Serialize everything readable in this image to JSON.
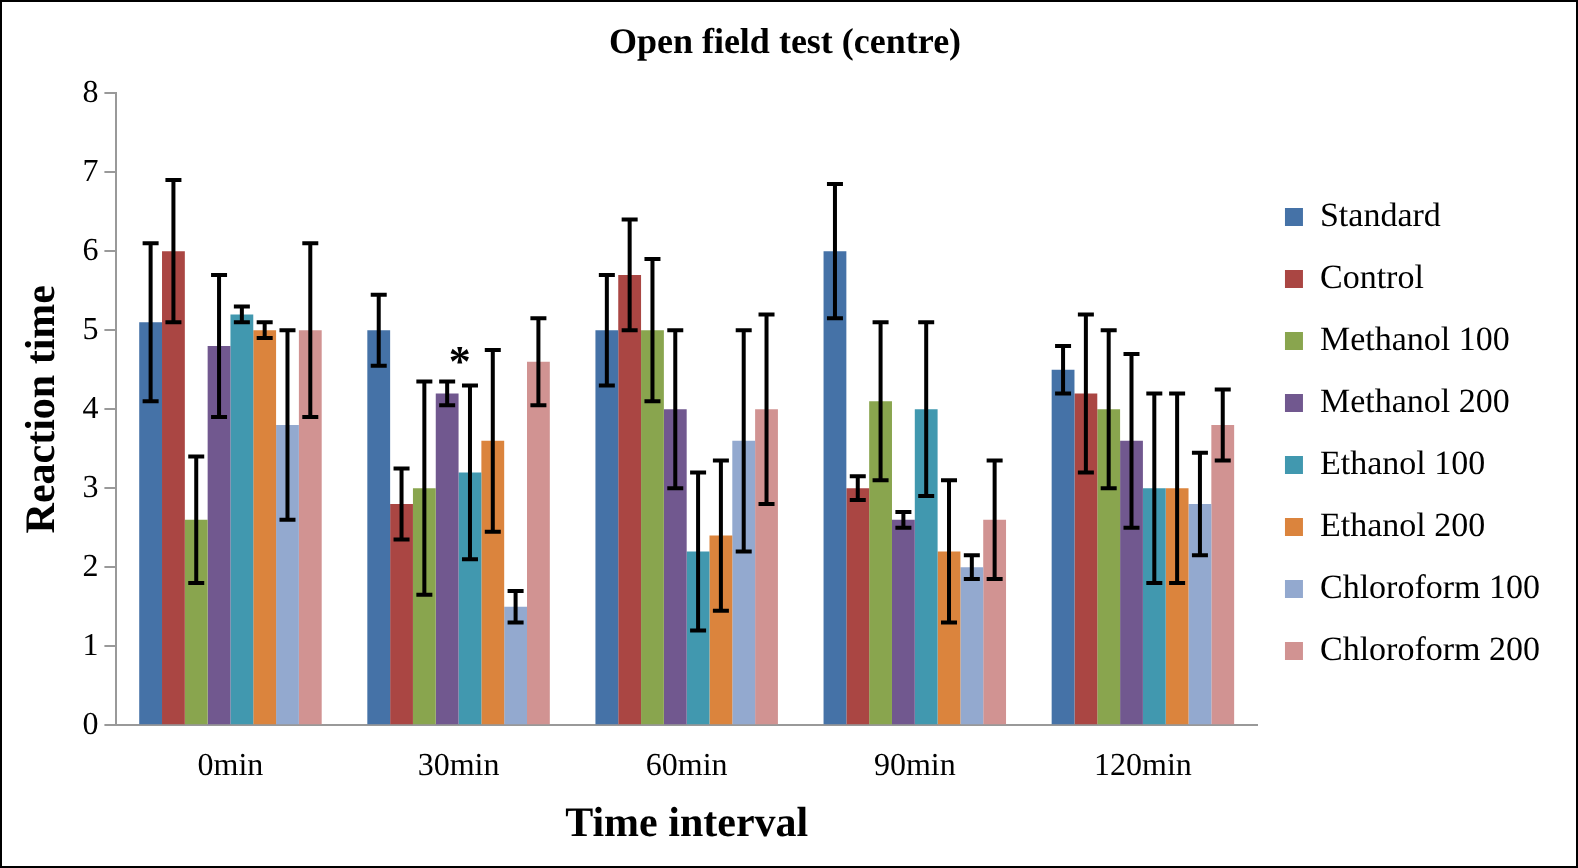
{
  "chart_data": {
    "type": "bar",
    "title": "Open field test (centre)",
    "xlabel": "Time interval",
    "ylabel": "Reaction time",
    "categories": [
      "0min",
      "30min",
      "60min",
      "90min",
      "120min"
    ],
    "series": [
      {
        "name": "Standard",
        "color": "#4572a7",
        "values": [
          5.1,
          5.0,
          5.0,
          6.0,
          4.5
        ],
        "errors": [
          1.0,
          0.45,
          0.7,
          0.85,
          0.3
        ]
      },
      {
        "name": "Control",
        "color": "#aa4643",
        "values": [
          6.0,
          2.8,
          5.7,
          3.0,
          4.2
        ],
        "errors": [
          0.9,
          0.45,
          0.7,
          0.15,
          1.0
        ]
      },
      {
        "name": "Methanol 100",
        "color": "#89a54e",
        "values": [
          2.6,
          3.0,
          5.0,
          4.1,
          4.0
        ],
        "errors": [
          0.8,
          1.35,
          0.9,
          1.0,
          1.0
        ]
      },
      {
        "name": "Methanol 200",
        "color": "#71588f",
        "values": [
          4.8,
          4.2,
          4.0,
          2.6,
          3.6
        ],
        "errors": [
          0.9,
          0.15,
          1.0,
          0.1,
          1.1
        ]
      },
      {
        "name": "Ethanol 100",
        "color": "#4198af",
        "values": [
          5.2,
          3.2,
          2.2,
          4.0,
          3.0
        ],
        "errors": [
          0.1,
          1.1,
          1.0,
          1.1,
          1.2
        ]
      },
      {
        "name": "Ethanol 200",
        "color": "#db843d",
        "values": [
          5.0,
          3.6,
          2.4,
          2.2,
          3.0
        ],
        "errors": [
          0.1,
          1.15,
          0.95,
          0.9,
          1.2
        ]
      },
      {
        "name": "Chloroform 100",
        "color": "#93a9cf",
        "values": [
          3.8,
          1.5,
          3.6,
          2.0,
          2.8
        ],
        "errors": [
          1.2,
          0.2,
          1.4,
          0.15,
          0.65
        ]
      },
      {
        "name": "Chloroform 200",
        "color": "#d19392",
        "values": [
          5.0,
          4.6,
          4.0,
          2.6,
          3.8
        ],
        "errors": [
          1.1,
          0.55,
          1.2,
          0.75,
          0.45
        ]
      }
    ],
    "annotations": [
      "*"
    ],
    "ylim": [
      0,
      8
    ],
    "yticks": [
      0,
      1,
      2,
      3,
      4,
      5,
      6,
      7,
      8
    ],
    "grid": false,
    "legend": "right"
  }
}
